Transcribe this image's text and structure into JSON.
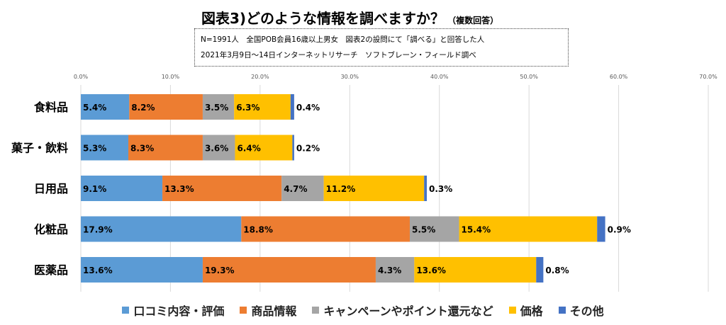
{
  "chart_data": {
    "type": "bar",
    "orientation": "horizontal",
    "stacked": true,
    "title": "図表3)どのような情報を調べますか？",
    "title_suffix": "（複数回答）",
    "notes": [
      "N=1991人　全国POB会員16歳以上男女　図表2の設問にて「調べる」と回答した人",
      "2021年3月9日～14日インターネットリサーチ　ソフトブレーン・フィールド調べ"
    ],
    "categories": [
      "食料品",
      "菓子・飲料",
      "日用品",
      "化粧品",
      "医薬品"
    ],
    "xlim": [
      0,
      70
    ],
    "ticks": [
      "0.0%",
      "10.0%",
      "20.0%",
      "30.0%",
      "40.0%",
      "50.0%",
      "60.0%",
      "70.0%"
    ],
    "grid": true,
    "legend_position": "bottom",
    "series": [
      {
        "name": "口コミ内容・評価",
        "color": "#5b9bd5",
        "values": [
          5.4,
          5.3,
          9.1,
          17.9,
          13.6
        ],
        "labels": [
          "5.4%",
          "5.3%",
          "9.1%",
          "17.9%",
          "13.6%"
        ]
      },
      {
        "name": "商品情報",
        "color": "#ed7d31",
        "values": [
          8.2,
          8.3,
          13.3,
          18.8,
          19.3
        ],
        "labels": [
          "8.2%",
          "8.3%",
          "13.3%",
          "18.8%",
          "19.3%"
        ]
      },
      {
        "name": "キャンペーンやポイント還元など",
        "color": "#a5a5a5",
        "values": [
          3.5,
          3.6,
          4.7,
          5.5,
          4.3
        ],
        "labels": [
          "3.5%",
          "3.6%",
          "4.7%",
          "5.5%",
          "4.3%"
        ]
      },
      {
        "name": "価格",
        "color": "#ffc000",
        "values": [
          6.3,
          6.4,
          11.2,
          15.4,
          13.6
        ],
        "labels": [
          "6.3%",
          "6.4%",
          "11.2%",
          "15.4%",
          "13.6%"
        ]
      },
      {
        "name": "その他",
        "color": "#4472c4",
        "values": [
          0.4,
          0.2,
          0.3,
          0.9,
          0.8
        ],
        "labels": [
          "0.4%",
          "0.2%",
          "0.3%",
          "0.9%",
          "0.8%"
        ]
      }
    ]
  }
}
